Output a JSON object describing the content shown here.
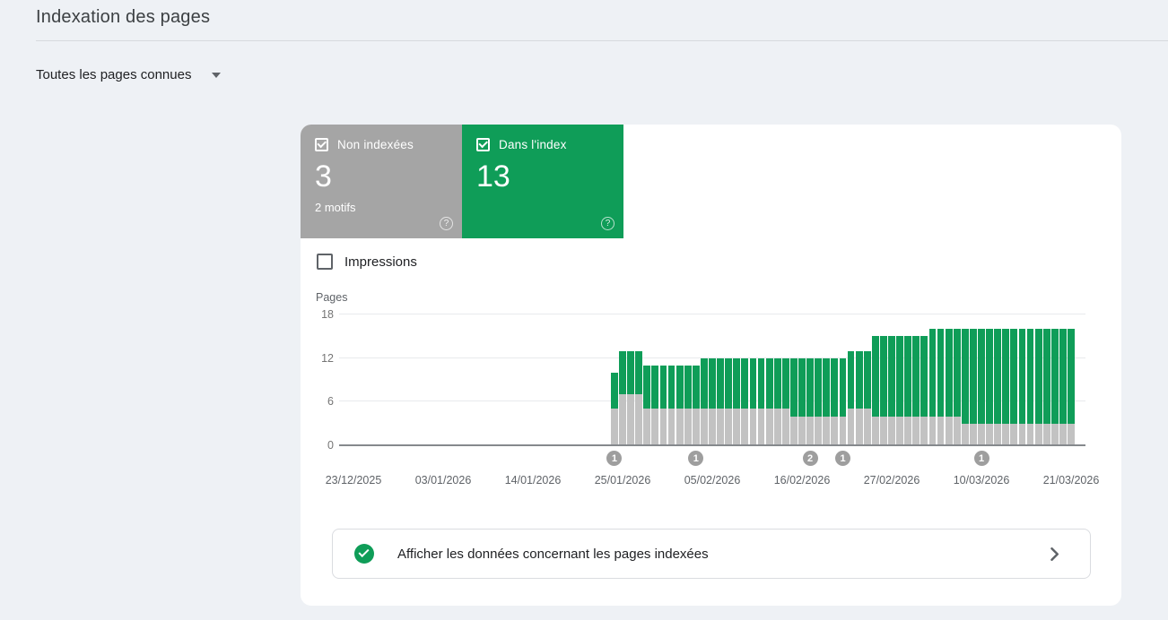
{
  "page": {
    "title": "Indexation des pages"
  },
  "filter": {
    "label": "Toutes les pages connues"
  },
  "tiles": [
    {
      "label": "Non indexées",
      "value": "3",
      "sub": "2 motifs",
      "color": "#a5a5a5",
      "checked": true
    },
    {
      "label": "Dans l'index",
      "value": "13",
      "sub": "",
      "color": "#0f9d58",
      "checked": true
    }
  ],
  "impressions": {
    "label": "Impressions",
    "checked": false
  },
  "chart_data": {
    "type": "stacked-bar",
    "ylabel": "Pages",
    "ylim": [
      0,
      18
    ],
    "yticks": [
      0,
      6,
      12,
      18
    ],
    "xtick_labels": [
      "23/12/2025",
      "03/01/2026",
      "14/01/2026",
      "25/01/2026",
      "05/02/2026",
      "16/02/2026",
      "27/02/2026",
      "10/03/2026",
      "21/03/2026"
    ],
    "xtick_interval_days": 11,
    "total_days": 88,
    "bars_start_day_offset": 32,
    "grid": true,
    "series": [
      {
        "name": "Non indexées",
        "color": "#c2c2c2",
        "values": [
          5,
          7,
          7,
          7,
          5,
          5,
          5,
          5,
          5,
          5,
          5,
          5,
          5,
          5,
          5,
          5,
          5,
          5,
          5,
          5,
          5,
          5,
          4,
          4,
          4,
          4,
          4,
          4,
          4,
          5,
          5,
          5,
          4,
          4,
          4,
          4,
          4,
          4,
          4,
          4,
          4,
          4,
          4,
          3,
          3,
          3,
          3,
          3,
          3,
          3,
          3,
          3,
          3,
          3,
          3,
          3,
          3
        ]
      },
      {
        "name": "Dans l'index",
        "color": "#0f9d58",
        "values": [
          5,
          6,
          6,
          6,
          6,
          6,
          6,
          6,
          6,
          6,
          6,
          7,
          7,
          7,
          7,
          7,
          7,
          7,
          7,
          7,
          7,
          7,
          8,
          8,
          8,
          8,
          8,
          8,
          8,
          8,
          8,
          8,
          11,
          11,
          11,
          11,
          11,
          11,
          11,
          12,
          12,
          12,
          12,
          13,
          13,
          13,
          13,
          13,
          13,
          13,
          13,
          13,
          13,
          13,
          13,
          13,
          13
        ]
      }
    ],
    "markers": [
      {
        "bar_index": 0,
        "label": "1"
      },
      {
        "bar_index": 10,
        "label": "1"
      },
      {
        "bar_index": 24,
        "label": "2"
      },
      {
        "bar_index": 28,
        "label": "1"
      },
      {
        "bar_index": 45,
        "label": "1"
      }
    ]
  },
  "banner": {
    "text": "Afficher les données concernant les pages indexées",
    "icon_color": "#0f9d58"
  }
}
